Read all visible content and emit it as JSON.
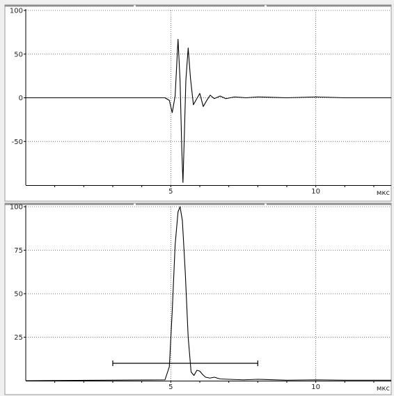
{
  "colors": {
    "background": "#f0f0f0",
    "plot_background": "#ffffff",
    "trace": "#000000",
    "grid": "#555555",
    "axis": "#000000"
  },
  "chart_data": [
    {
      "type": "line",
      "title": "",
      "xlabel": "мкс",
      "ylabel": "",
      "xlim": [
        0,
        12.6
      ],
      "ylim": [
        -100,
        100
      ],
      "xticks": [
        5,
        10
      ],
      "yticks": [
        100,
        50,
        0,
        -50
      ],
      "ytick_labels": [
        "100",
        "50",
        "0",
        "-50"
      ],
      "grid": true,
      "series": [
        {
          "x": [
            0,
            4.8,
            4.95,
            5.05,
            5.15,
            5.25,
            5.32,
            5.38,
            5.42,
            5.47,
            5.52,
            5.6,
            5.68,
            5.78,
            5.88,
            6.0,
            6.12,
            6.24,
            6.36,
            6.5,
            6.7,
            6.9,
            7.2,
            7.6,
            8.0,
            9.0,
            10.0,
            11.0,
            12.6
          ],
          "y": [
            0,
            0,
            -3,
            -17,
            2,
            67,
            20,
            -60,
            -97,
            -40,
            20,
            57,
            22,
            -8,
            -2,
            5,
            -10,
            -3,
            3,
            -1,
            2,
            -1,
            1,
            0,
            1,
            0,
            1,
            0,
            0
          ]
        }
      ]
    },
    {
      "type": "line",
      "title": "",
      "xlabel": "мкс",
      "ylabel": "",
      "xlim": [
        0,
        12.6
      ],
      "ylim": [
        0,
        100
      ],
      "xticks": [
        5,
        10
      ],
      "yticks": [
        100,
        75,
        50,
        25
      ],
      "ytick_labels": [
        "100",
        "75",
        "50",
        "25"
      ],
      "grid": true,
      "series": [
        {
          "x": [
            0,
            4.8,
            4.95,
            5.05,
            5.15,
            5.25,
            5.32,
            5.4,
            5.5,
            5.6,
            5.7,
            5.8,
            5.9,
            6.0,
            6.1,
            6.2,
            6.35,
            6.5,
            6.7,
            7.0,
            7.5,
            8.0,
            9.0,
            10.0,
            11.0,
            12.6
          ],
          "y": [
            0,
            0.5,
            8,
            40,
            78,
            97,
            100,
            92,
            62,
            25,
            5,
            3,
            6,
            5.5,
            3.5,
            2,
            1.5,
            2,
            1,
            0.8,
            0.5,
            0.8,
            0.3,
            0.5,
            0.3,
            0.3
          ]
        }
      ],
      "annotations": [
        {
          "type": "hline-segment",
          "x": [
            3.0,
            8.0
          ],
          "y": 10
        }
      ]
    }
  ]
}
